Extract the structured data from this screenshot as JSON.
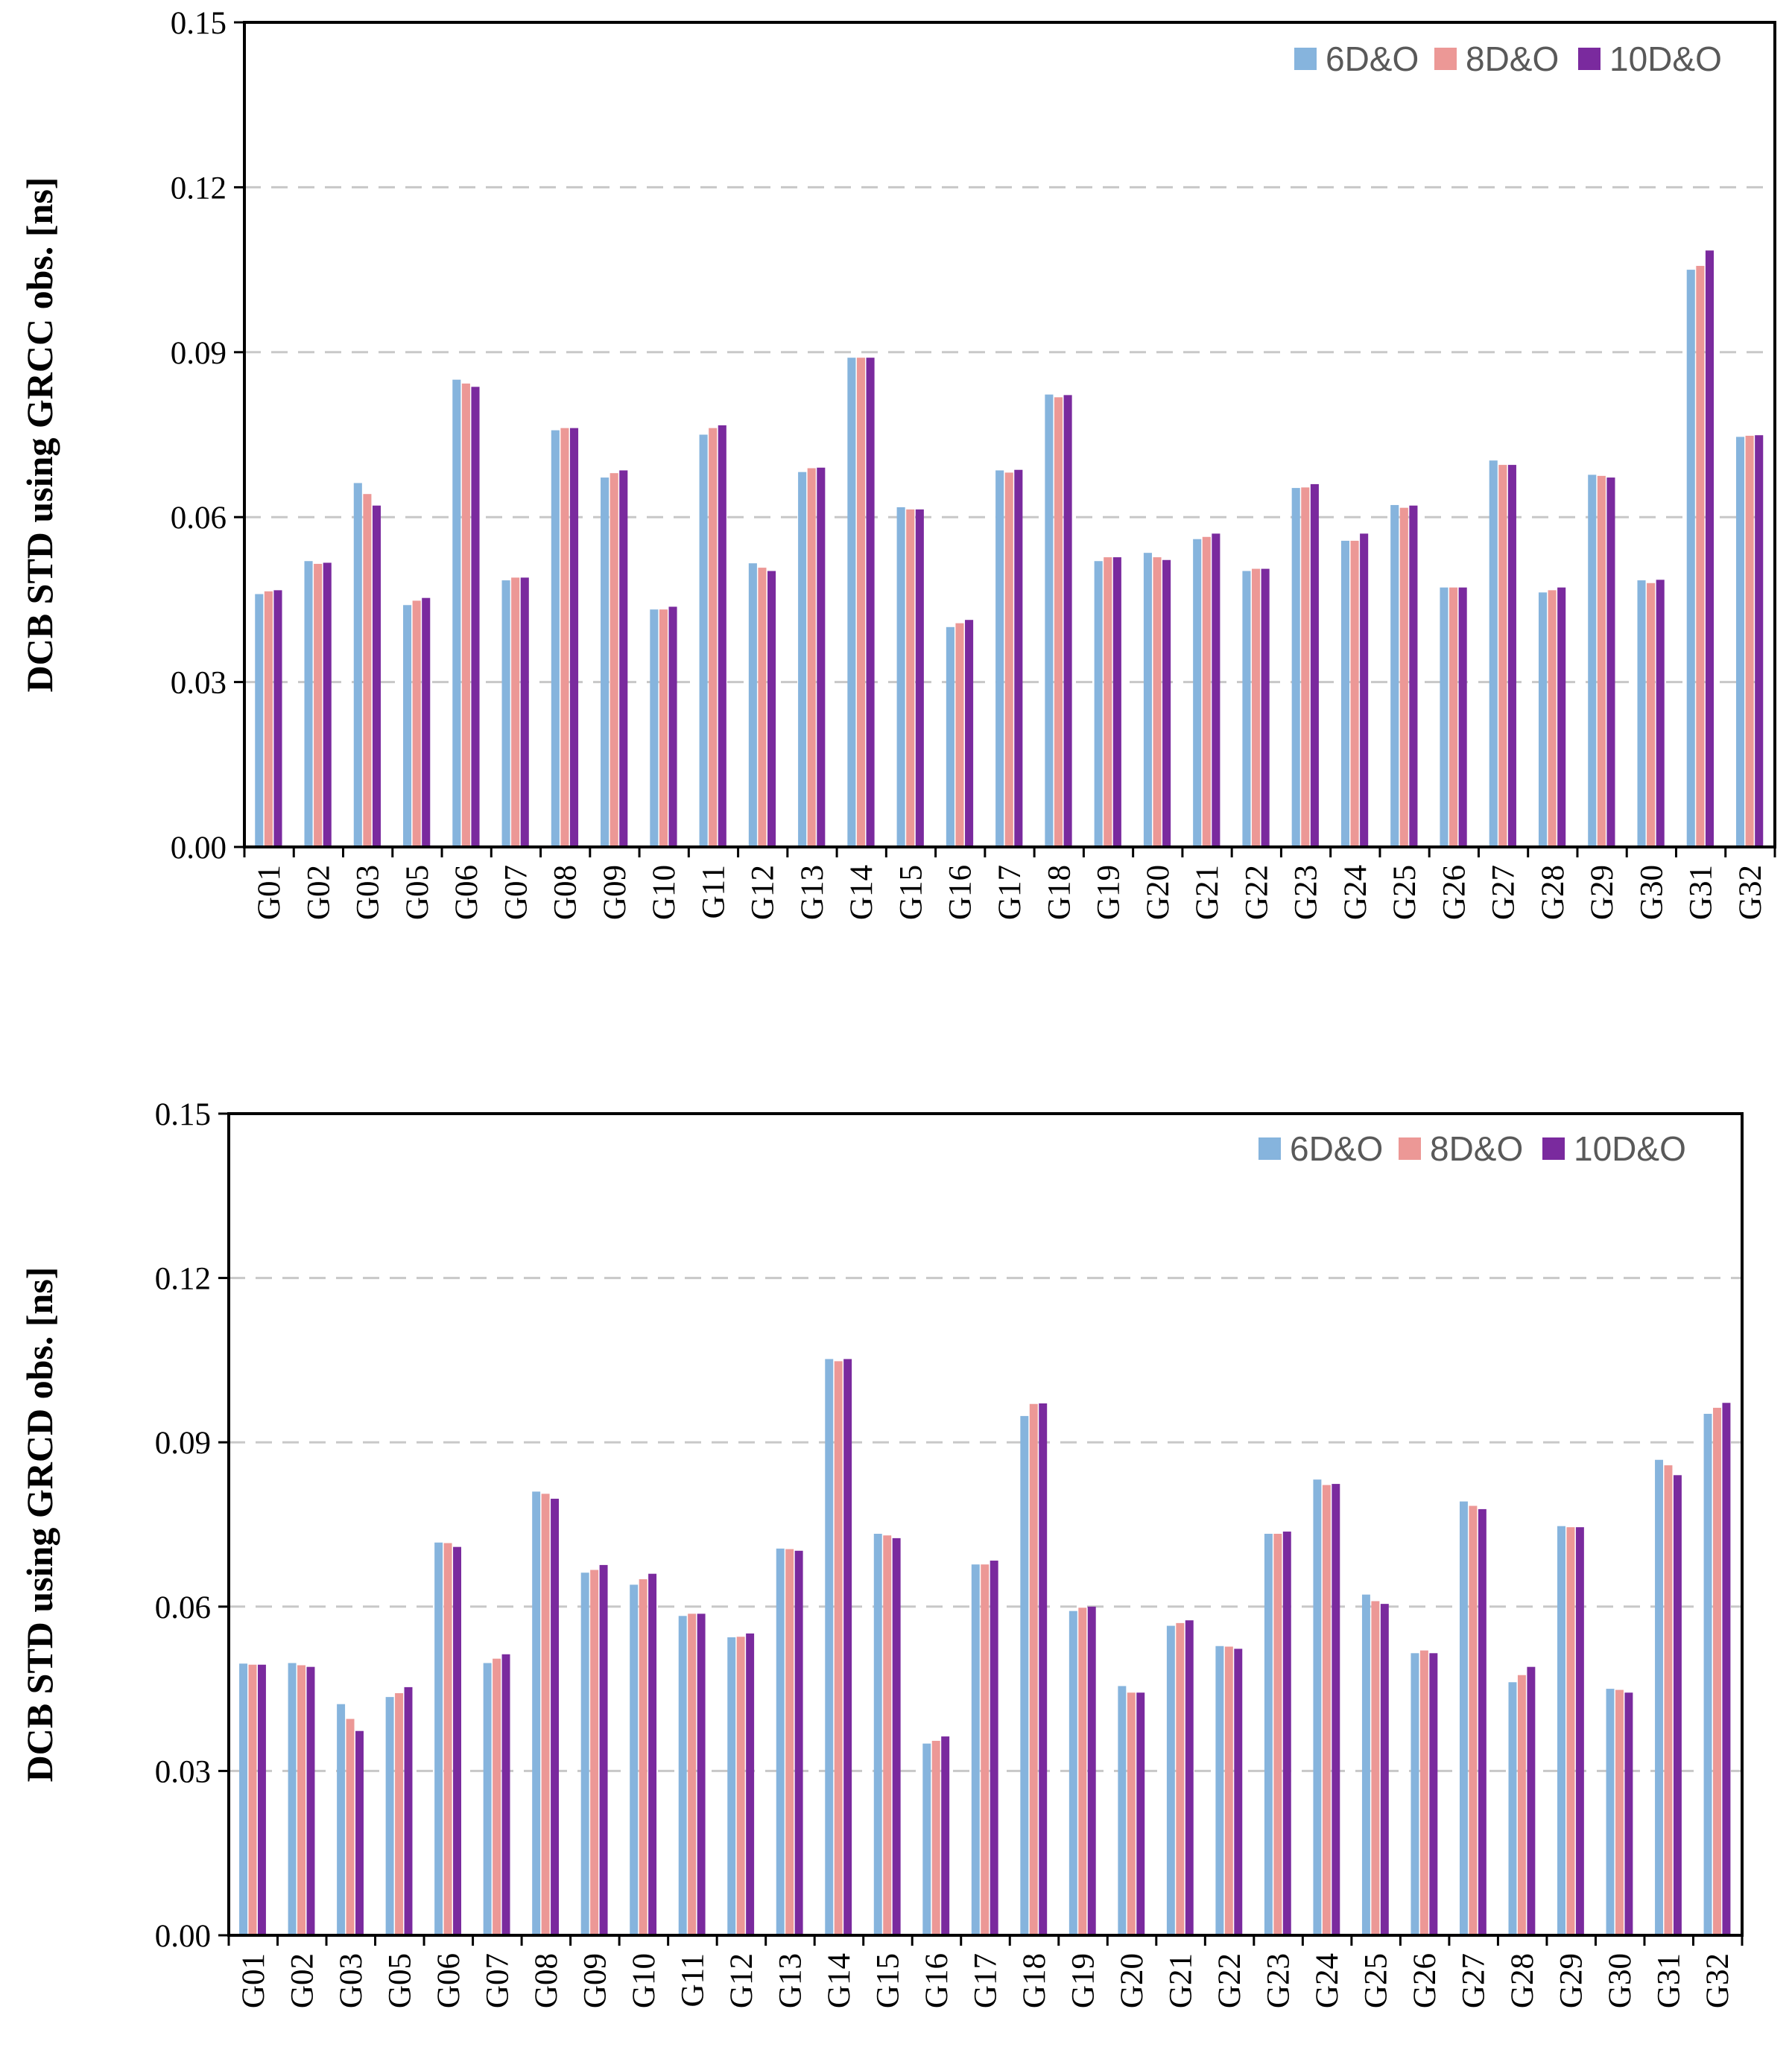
{
  "colors": {
    "series": [
      "#86b4dd",
      "#ec9896",
      "#7a2a9e"
    ],
    "grid": "#c8c8c8",
    "axis": "#000000"
  },
  "chart_data": [
    {
      "type": "bar",
      "ylabel": "DCB STD using GRCC obs. [ns]",
      "ylim": [
        0,
        0.15
      ],
      "yticks": [
        "0.00",
        "0.03",
        "0.06",
        "0.09",
        "0.12",
        "0.15"
      ],
      "grid": true,
      "legend": "top-right",
      "categories": [
        "G01",
        "G02",
        "G03",
        "G05",
        "G06",
        "G07",
        "G08",
        "G09",
        "G10",
        "G11",
        "G12",
        "G13",
        "G14",
        "G15",
        "G16",
        "G17",
        "G18",
        "G19",
        "G20",
        "G21",
        "G22",
        "G23",
        "G24",
        "G25",
        "G26",
        "G27",
        "G28",
        "G29",
        "G30",
        "G31",
        "G32"
      ],
      "series": [
        {
          "name": "6D&O",
          "values": [
            0.046,
            0.052,
            0.0662,
            0.044,
            0.085,
            0.0485,
            0.0758,
            0.0672,
            0.0432,
            0.075,
            0.0516,
            0.0682,
            0.089,
            0.0618,
            0.04,
            0.0685,
            0.0823,
            0.052,
            0.0535,
            0.056,
            0.0502,
            0.0653,
            0.0557,
            0.0622,
            0.0472,
            0.0703,
            0.0463,
            0.0677,
            0.0485,
            0.105,
            0.0746
          ]
        },
        {
          "name": "8D&O",
          "values": [
            0.0465,
            0.0515,
            0.0642,
            0.0448,
            0.0843,
            0.049,
            0.0762,
            0.068,
            0.0432,
            0.0762,
            0.0508,
            0.0689,
            0.089,
            0.0614,
            0.0407,
            0.0681,
            0.0818,
            0.0527,
            0.0527,
            0.0564,
            0.0506,
            0.0654,
            0.0557,
            0.0617,
            0.0472,
            0.0695,
            0.0467,
            0.0675,
            0.048,
            0.1057,
            0.0748
          ]
        },
        {
          "name": "10D&O",
          "values": [
            0.0467,
            0.0517,
            0.0621,
            0.0453,
            0.0837,
            0.049,
            0.0762,
            0.0685,
            0.0437,
            0.0767,
            0.0502,
            0.069,
            0.089,
            0.0614,
            0.0413,
            0.0686,
            0.0822,
            0.0527,
            0.0522,
            0.057,
            0.0506,
            0.066,
            0.057,
            0.0621,
            0.0472,
            0.0695,
            0.0472,
            0.0672,
            0.0486,
            0.1085,
            0.0749
          ]
        }
      ]
    },
    {
      "type": "bar",
      "ylabel": "DCB STD using GRCD obs. [ns]",
      "ylim": [
        0,
        0.15
      ],
      "yticks": [
        "0.00",
        "0.03",
        "0.06",
        "0.09",
        "0.12",
        "0.15"
      ],
      "grid": true,
      "legend": "top-right",
      "categories": [
        "G01",
        "G02",
        "G03",
        "G05",
        "G06",
        "G07",
        "G08",
        "G09",
        "G10",
        "G11",
        "G12",
        "G13",
        "G14",
        "G15",
        "G16",
        "G17",
        "G18",
        "G19",
        "G20",
        "G21",
        "G22",
        "G23",
        "G24",
        "G25",
        "G26",
        "G27",
        "G28",
        "G29",
        "G30",
        "G31",
        "G32"
      ],
      "series": [
        {
          "name": "6D&O",
          "values": [
            0.0496,
            0.0497,
            0.0422,
            0.0435,
            0.0717,
            0.0497,
            0.081,
            0.0662,
            0.064,
            0.0583,
            0.0544,
            0.0706,
            0.1052,
            0.0733,
            0.035,
            0.0677,
            0.0948,
            0.0592,
            0.0455,
            0.0565,
            0.0528,
            0.0733,
            0.0832,
            0.0622,
            0.0515,
            0.0792,
            0.0462,
            0.0747,
            0.045,
            0.0868,
            0.0952
          ]
        },
        {
          "name": "8D&O",
          "values": [
            0.0494,
            0.0493,
            0.0395,
            0.0442,
            0.0716,
            0.0505,
            0.0806,
            0.0667,
            0.065,
            0.0587,
            0.0545,
            0.0705,
            0.1048,
            0.073,
            0.0355,
            0.0677,
            0.097,
            0.0598,
            0.0443,
            0.057,
            0.0527,
            0.0733,
            0.0822,
            0.061,
            0.052,
            0.0784,
            0.0475,
            0.0745,
            0.0448,
            0.0858,
            0.0963
          ]
        },
        {
          "name": "10D&O",
          "values": [
            0.0494,
            0.049,
            0.0373,
            0.0453,
            0.0709,
            0.0513,
            0.0797,
            0.0676,
            0.066,
            0.0587,
            0.0551,
            0.0702,
            0.1052,
            0.0725,
            0.0363,
            0.0684,
            0.0971,
            0.06,
            0.0443,
            0.0575,
            0.0523,
            0.0737,
            0.0824,
            0.0605,
            0.0515,
            0.0778,
            0.049,
            0.0745,
            0.0443,
            0.084,
            0.0972
          ]
        }
      ]
    }
  ]
}
